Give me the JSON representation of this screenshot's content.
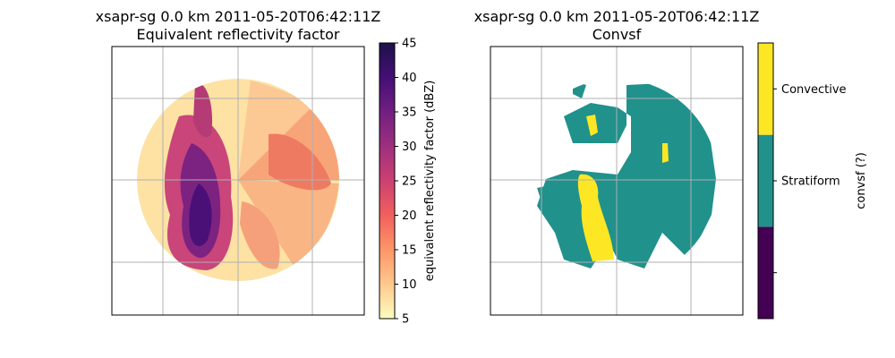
{
  "chart_data": [
    {
      "type": "heatmap",
      "title": "xsapr-sg 0.0 km 2011-05-20T06:42:11Z",
      "subtitle": "Equivalent reflectivity factor",
      "grid": true,
      "colormap": "magma_r",
      "colorbar": {
        "label": "equivalent reflectivity factor (dBZ)",
        "range": [
          5,
          45
        ],
        "ticks": [
          "5",
          "10",
          "15",
          "20",
          "25",
          "30",
          "35",
          "40",
          "45"
        ],
        "colors": [
          "#fcfdbf",
          "#fec98d",
          "#fd9668",
          "#f1605d",
          "#cd4071",
          "#9e2f7f",
          "#721f81",
          "#440f76",
          "#1e1149"
        ]
      }
    },
    {
      "type": "heatmap",
      "title": "xsapr-sg 0.0 km 2011-05-20T06:42:11Z",
      "subtitle": "Convsf",
      "grid": true,
      "categories": [
        "",
        "Stratiform",
        "Convective"
      ],
      "colors": [
        "#440154",
        "#21918c",
        "#fde725"
      ],
      "colorbar": {
        "label": "convsf (?)",
        "ticks": [
          "",
          "Stratiform",
          "Convective"
        ]
      }
    }
  ]
}
